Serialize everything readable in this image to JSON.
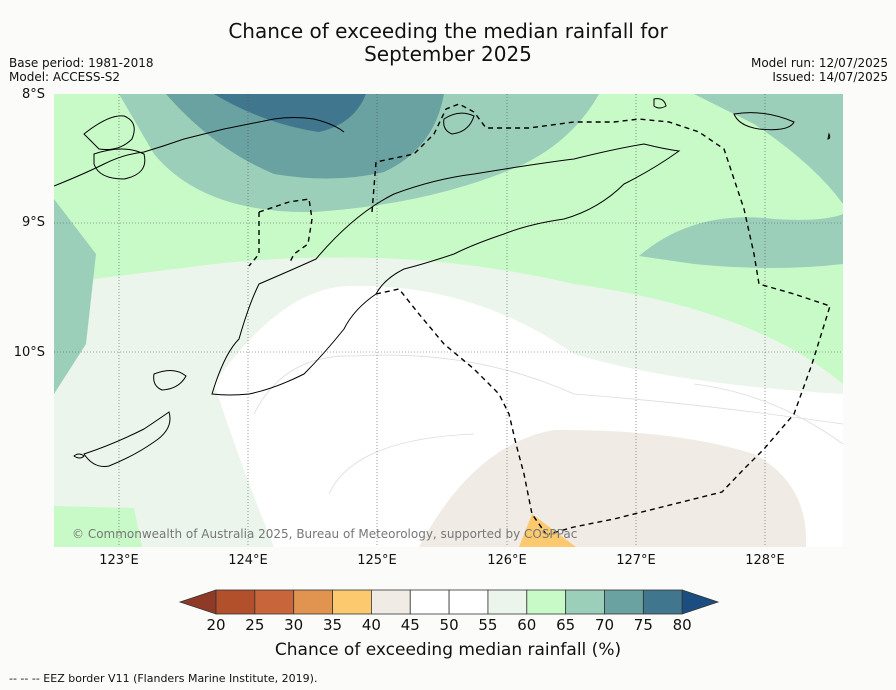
{
  "title_line1": "Chance of exceeding the median rainfall for",
  "title_line2": "September 2025",
  "base_period": "Base period: 1981-2018",
  "model": "Model: ACCESS-S2",
  "model_run": "Model run: 12/07/2025",
  "issued": "Issued: 14/07/2025",
  "lat_labels": [
    "8°S",
    "9°S",
    "10°S"
  ],
  "lon_labels": [
    "123°E",
    "124°E",
    "125°E",
    "126°E",
    "127°E",
    "128°E"
  ],
  "copyright": "© Commonwealth of Australia 2025, Bureau of Meteorology, supported by COSPPac",
  "colorbar": {
    "label": "Chance of exceeding median rainfall (%)",
    "ticks": [
      "20",
      "25",
      "30",
      "35",
      "40",
      "45",
      "50",
      "55",
      "60",
      "65",
      "70",
      "75",
      "80"
    ],
    "colors": [
      "#b3502c",
      "#c9653a",
      "#e09450",
      "#fcc96e",
      "#f1ebe6",
      "#ffffff",
      "#ffffff",
      "#ebf5eb",
      "#c8fac8",
      "#9bcfb9",
      "#6aa1a1",
      "#41768f"
    ],
    "under_color": "#8e3a26",
    "over_color": "#1c4d80"
  },
  "footer": "--  --  -- EEZ border V11 (Flanders Marine Institute, 2019)."
}
